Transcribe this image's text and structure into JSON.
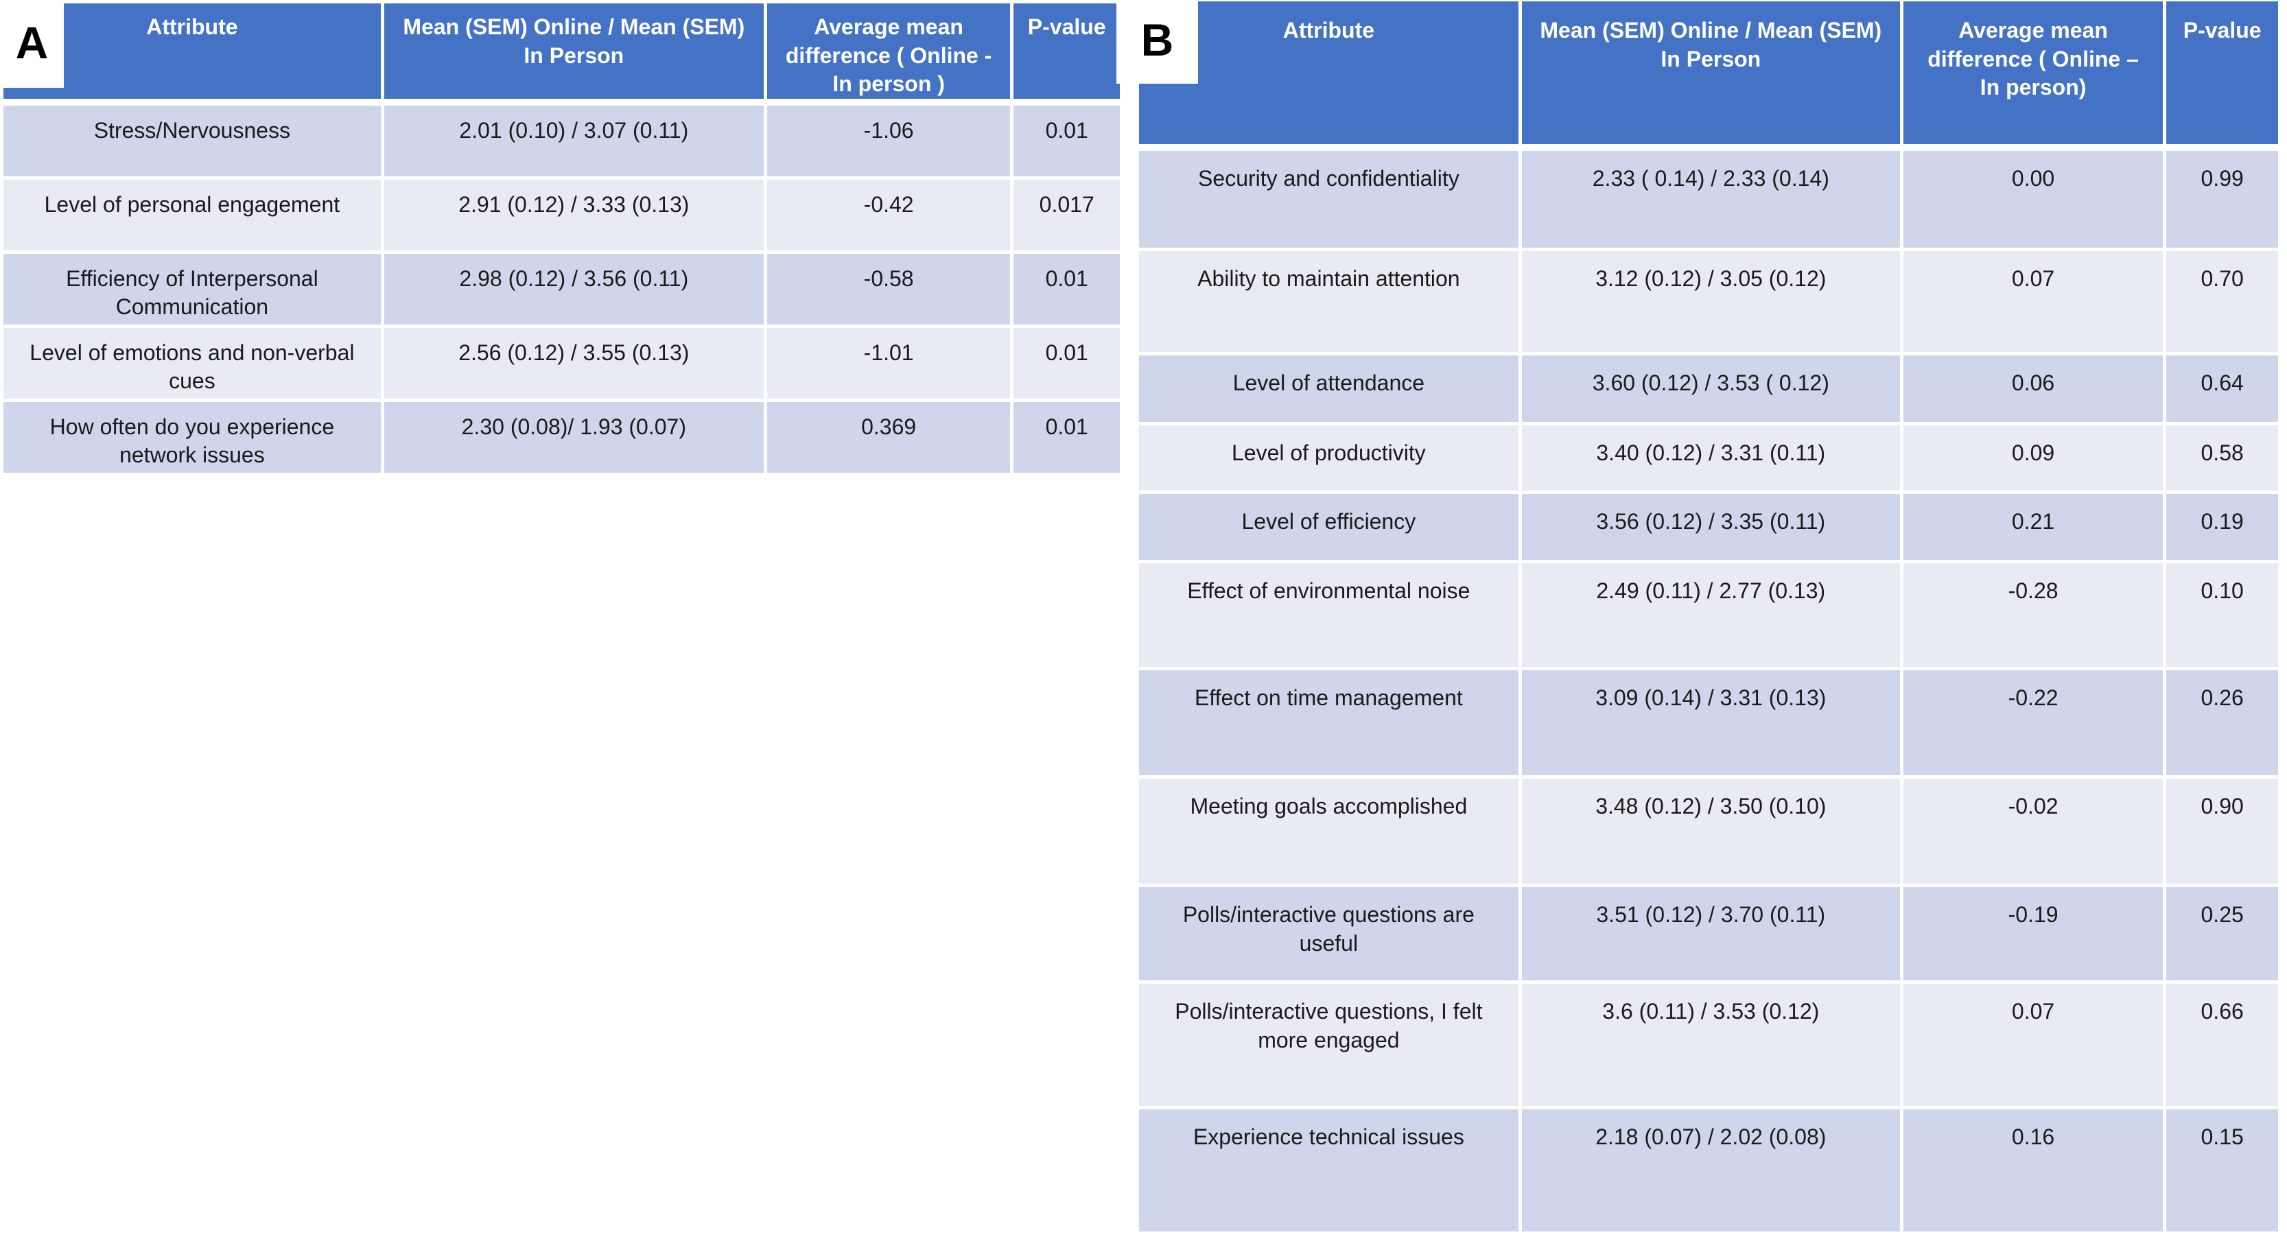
{
  "colors": {
    "header_blue": "#4472C4",
    "band_dark": "#CFD5EA",
    "band_light": "#E9EBF4",
    "gridline": "#FFFFFF",
    "body_text": "#1A1A1A",
    "header_text": "#FFFFFF"
  },
  "panels": [
    {
      "label": "A",
      "columns": [
        "Attribute",
        "Mean (SEM) Online  / Mean (SEM) In Person",
        "Average mean difference ( Online - In person )",
        "P-value"
      ],
      "rows": [
        {
          "attribute": "Stress/Nervousness",
          "mean": "2.01 (0.10) / 3.07 (0.11)",
          "diff": "-1.06",
          "p": "0.01"
        },
        {
          "attribute": "Level of personal engagement",
          "mean": "2.91 (0.12) / 3.33 (0.13)",
          "diff": "-0.42",
          "p": "0.017"
        },
        {
          "attribute": "Efficiency of Interpersonal Communication",
          "mean": "2.98  (0.12) / 3.56 (0.11)",
          "diff": "-0.58",
          "p": "0.01"
        },
        {
          "attribute": "Level of emotions and non-verbal cues",
          "mean": "2.56 (0.12) / 3.55 (0.13)",
          "diff": "-1.01",
          "p": "0.01"
        },
        {
          "attribute": "How often do you experience network issues",
          "mean": "2.30 (0.08)/ 1.93 (0.07)",
          "diff": "0.369",
          "p": "0.01"
        }
      ]
    },
    {
      "label": "B",
      "columns": [
        "Attribute",
        "Mean (SEM) Online  / Mean (SEM) In Person",
        "Average mean difference ( Online – In person)",
        "P-value"
      ],
      "rows": [
        {
          "attribute": "Security and confidentiality",
          "mean": "2.33 ( 0.14) / 2.33 (0.14)",
          "diff": "0.00",
          "p": "0.99"
        },
        {
          "attribute": "Ability to maintain attention",
          "mean": "3.12 (0.12) / 3.05 (0.12)",
          "diff": "0.07",
          "p": "0.70"
        },
        {
          "attribute": "Level of attendance",
          "mean": "3.60  (0.12) / 3.53 ( 0.12)",
          "diff": "0.06",
          "p": "0.64"
        },
        {
          "attribute": "Level of productivity",
          "mean": "3.40 (0.12) / 3.31 (0.11)",
          "diff": "0.09",
          "p": "0.58"
        },
        {
          "attribute": "Level of efficiency",
          "mean": "3.56 (0.12) / 3.35 (0.11)",
          "diff": "0.21",
          "p": "0.19"
        },
        {
          "attribute": "Effect of environmental noise",
          "mean": "2.49 (0.11) / 2.77 (0.13)",
          "diff": "-0.28",
          "p": "0.10"
        },
        {
          "attribute": "Effect on time management",
          "mean": "3.09 (0.14) / 3.31 (0.13)",
          "diff": "-0.22",
          "p": "0.26"
        },
        {
          "attribute": "Meeting goals accomplished",
          "mean": "3.48 (0.12) / 3.50 (0.10)",
          "diff": "-0.02",
          "p": "0.90"
        },
        {
          "attribute": "Polls/interactive questions are useful",
          "mean": "3.51 (0.12) / 3.70 (0.11)",
          "diff": "-0.19",
          "p": "0.25"
        },
        {
          "attribute": "Polls/interactive questions, I felt more engaged",
          "mean": "3.6 (0.11) / 3.53 (0.12)",
          "diff": "0.07",
          "p": "0.66"
        },
        {
          "attribute": "Experience technical issues",
          "mean": "2.18 (0.07) / 2.02 (0.08)",
          "diff": "0.16",
          "p": "0.15"
        }
      ]
    }
  ]
}
